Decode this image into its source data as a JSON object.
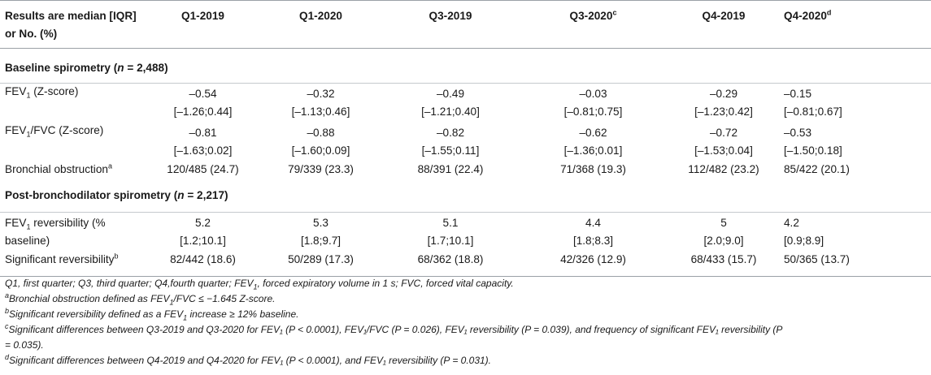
{
  "header": {
    "first": "Results are median [IQR] or No. (%)",
    "cols": [
      {
        "label": "Q1-2019",
        "sup": ""
      },
      {
        "label": "Q1-2020",
        "sup": ""
      },
      {
        "label": "Q3-2019",
        "sup": ""
      },
      {
        "label": "Q3-2020",
        "sup": "c"
      },
      {
        "label": "Q4-2019",
        "sup": ""
      },
      {
        "label": "Q4-2020",
        "sup": "d"
      }
    ]
  },
  "sections": {
    "baseline": {
      "text": "Baseline spirometry (",
      "n": "n",
      "rest": " = 2,488)"
    },
    "post": {
      "text": "Post-bronchodilator spirometry (",
      "n": "n",
      "rest": " = 2,217)"
    }
  },
  "rows": {
    "fev1": {
      "label_a": "FEV",
      "label_sub": "1",
      "label_b": " (Z-score)",
      "values": [
        [
          "–0.54",
          "[–1.26;0.44]"
        ],
        [
          "–0.32",
          "[–1.13;0.46]"
        ],
        [
          "–0.49",
          "[–1.21;0.40]"
        ],
        [
          "–0.03",
          "[–0.81;0.75]"
        ],
        [
          "–0.29",
          "[–1.23;0.42]"
        ],
        [
          "–0.15",
          "[–0.81;0.67]"
        ]
      ]
    },
    "fev1fvc": {
      "label_a": "FEV",
      "label_sub": "1",
      "label_b": "/FVC (Z-score)",
      "values": [
        [
          "–0.81",
          "[–1.63;0.02]"
        ],
        [
          "–0.88",
          "[–1.60;0.09]"
        ],
        [
          "–0.82",
          "[–1.55;0.11]"
        ],
        [
          "–0.62",
          "[–1.36;0.01]"
        ],
        [
          "–0.72",
          "[–1.53;0.04]"
        ],
        [
          "–0.53",
          "[–1.50;0.18]"
        ]
      ]
    },
    "obstruction": {
      "label": "Bronchial obstruction",
      "sup": "a",
      "values": [
        "120/485 (24.7)",
        "79/339 (23.3)",
        "88/391 (22.4)",
        "71/368 (19.3)",
        "112/482 (23.2)",
        "85/422 (20.1)"
      ]
    },
    "reversibility": {
      "label_a": "FEV",
      "label_sub": "1",
      "label_b": " reversibility (%",
      "label_c": "baseline)",
      "values": [
        [
          "5.2",
          "[1.2;10.1]"
        ],
        [
          "5.3",
          "[1.8;9.7]"
        ],
        [
          "5.1",
          "[1.7;10.1]"
        ],
        [
          "4.4",
          "[1.8;8.3]"
        ],
        [
          "5",
          "[2.0;9.0]"
        ],
        [
          "4.2",
          "[0.9;8.9]"
        ]
      ]
    },
    "significant": {
      "label": "Significant reversibility",
      "sup": "b",
      "values": [
        "82/442 (18.6)",
        "50/289 (17.3)",
        "68/362 (18.8)",
        "42/326 (12.9)",
        "68/433 (15.7)",
        "50/365 (13.7)"
      ]
    }
  },
  "footnotes": {
    "abbr_a": "Q1, first quarter; Q3, third quarter; Q4,fourth quarter; FEV",
    "abbr_sub": "1",
    "abbr_b": ", forced expiratory volume in 1 s; FVC, forced vital capacity.",
    "a_sup": "a",
    "a_a": "Bronchial obstruction defined as FEV",
    "a_sub": "1",
    "a_b": "/FVC ≤ −1.645 Z-score.",
    "b_sup": "b",
    "b_a": "Significant reversibility defined as a FEV",
    "b_sub": "1",
    "b_b": " increase ≥ 12% baseline.",
    "c_sup": "c",
    "c_line1": "Significant differences between Q3-2019 and Q3-2020 for FEV₁ (P < 0.0001), FEV₁/FVC (P = 0.026), FEV₁ reversibility (P = 0.039), and frequency of significant FEV₁ reversibility (P",
    "c_line2": "= 0.035).",
    "d_sup": "d",
    "d_text": "Significant differences between Q4-2019 and Q4-2020 for FEV₁ (P < 0.0001), and FEV₁ reversibility (P = 0.031)."
  }
}
